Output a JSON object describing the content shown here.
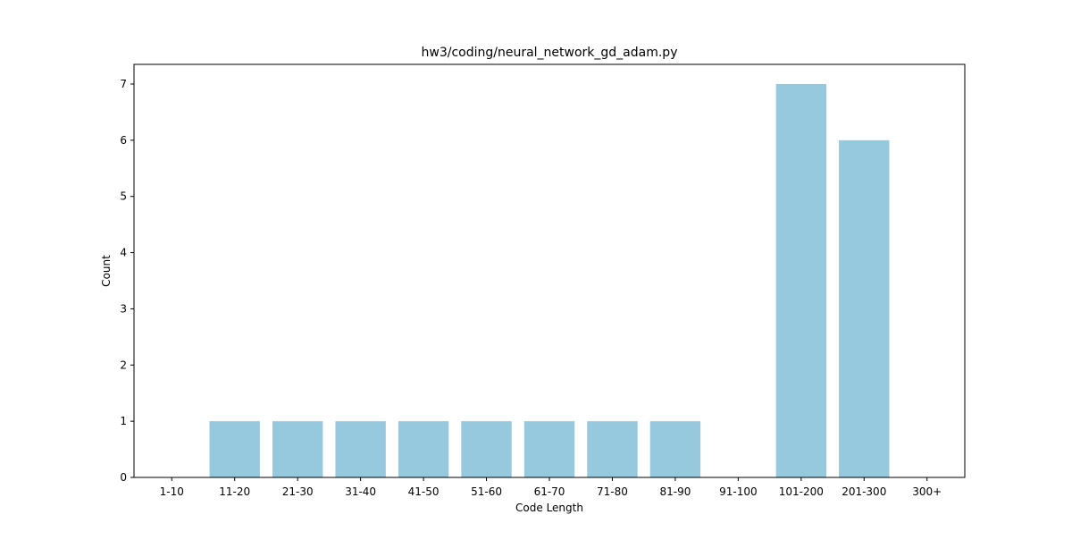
{
  "chart_data": {
    "type": "bar",
    "title": "hw3/coding/neural_network_gd_adam.py",
    "xlabel": "Code Length",
    "ylabel": "Count",
    "categories": [
      "1-10",
      "11-20",
      "21-30",
      "31-40",
      "41-50",
      "51-60",
      "61-70",
      "71-80",
      "81-90",
      "91-100",
      "101-200",
      "201-300",
      "300+"
    ],
    "values": [
      0,
      1,
      1,
      1,
      1,
      1,
      1,
      1,
      1,
      0,
      7,
      6,
      0
    ],
    "ylim": [
      0,
      7.35
    ],
    "yticks": [
      0,
      1,
      2,
      3,
      4,
      5,
      6,
      7
    ],
    "bar_color": "#96c9dd",
    "grid": false,
    "legend": "none"
  }
}
